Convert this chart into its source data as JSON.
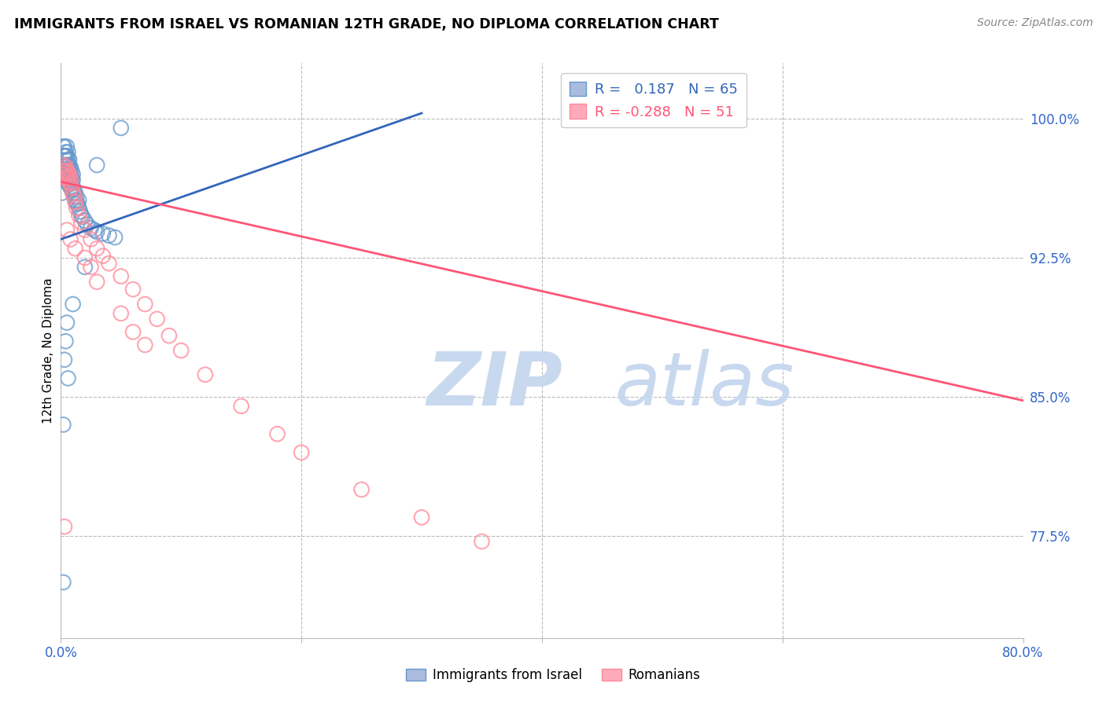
{
  "title": "IMMIGRANTS FROM ISRAEL VS ROMANIAN 12TH GRADE, NO DIPLOMA CORRELATION CHART",
  "source": "Source: ZipAtlas.com",
  "ylabel": "12th Grade, No Diploma",
  "ytick_labels": [
    "100.0%",
    "92.5%",
    "85.0%",
    "77.5%"
  ],
  "ytick_values": [
    1.0,
    0.925,
    0.85,
    0.775
  ],
  "xlim": [
    0.0,
    0.8
  ],
  "ylim": [
    0.72,
    1.03
  ],
  "blue_R": 0.187,
  "blue_N": 65,
  "pink_R": -0.288,
  "pink_N": 51,
  "blue_color": "#6699CC",
  "pink_color": "#FF8899",
  "blue_line_color": "#3366BB",
  "pink_line_color": "#FF5577",
  "grid_color": "#BBBBBB",
  "background_color": "#FFFFFF",
  "blue_scatter_x": [
    0.001,
    0.002,
    0.002,
    0.003,
    0.003,
    0.003,
    0.004,
    0.004,
    0.004,
    0.005,
    0.005,
    0.005,
    0.005,
    0.006,
    0.006,
    0.006,
    0.006,
    0.006,
    0.007,
    0.007,
    0.007,
    0.007,
    0.007,
    0.008,
    0.008,
    0.008,
    0.008,
    0.009,
    0.009,
    0.009,
    0.009,
    0.01,
    0.01,
    0.01,
    0.01,
    0.011,
    0.011,
    0.012,
    0.012,
    0.013,
    0.013,
    0.014,
    0.015,
    0.015,
    0.016,
    0.017,
    0.018,
    0.02,
    0.022,
    0.025,
    0.028,
    0.03,
    0.035,
    0.04,
    0.045,
    0.003,
    0.004,
    0.005,
    0.006,
    0.01,
    0.02,
    0.002,
    0.03,
    0.05,
    0.002
  ],
  "blue_scatter_y": [
    0.96,
    0.98,
    0.985,
    0.975,
    0.98,
    0.985,
    0.975,
    0.98,
    0.982,
    0.97,
    0.975,
    0.98,
    0.985,
    0.965,
    0.97,
    0.975,
    0.978,
    0.982,
    0.965,
    0.968,
    0.972,
    0.975,
    0.978,
    0.963,
    0.966,
    0.97,
    0.974,
    0.962,
    0.965,
    0.968,
    0.972,
    0.96,
    0.963,
    0.967,
    0.97,
    0.958,
    0.962,
    0.956,
    0.96,
    0.955,
    0.958,
    0.954,
    0.952,
    0.956,
    0.95,
    0.948,
    0.947,
    0.945,
    0.943,
    0.941,
    0.94,
    0.939,
    0.938,
    0.937,
    0.936,
    0.87,
    0.88,
    0.89,
    0.86,
    0.9,
    0.92,
    0.835,
    0.975,
    0.995,
    0.75
  ],
  "pink_scatter_x": [
    0.001,
    0.002,
    0.002,
    0.003,
    0.003,
    0.004,
    0.004,
    0.005,
    0.005,
    0.006,
    0.006,
    0.007,
    0.007,
    0.008,
    0.008,
    0.009,
    0.01,
    0.011,
    0.012,
    0.013,
    0.015,
    0.017,
    0.02,
    0.025,
    0.03,
    0.035,
    0.04,
    0.05,
    0.06,
    0.07,
    0.08,
    0.09,
    0.1,
    0.12,
    0.15,
    0.18,
    0.2,
    0.25,
    0.3,
    0.35,
    0.005,
    0.008,
    0.012,
    0.02,
    0.025,
    0.03,
    0.05,
    0.06,
    0.07,
    0.55,
    0.003
  ],
  "pink_scatter_y": [
    0.97,
    0.972,
    0.975,
    0.968,
    0.972,
    0.97,
    0.974,
    0.968,
    0.972,
    0.968,
    0.971,
    0.966,
    0.97,
    0.965,
    0.968,
    0.963,
    0.96,
    0.958,
    0.955,
    0.952,
    0.948,
    0.944,
    0.94,
    0.935,
    0.93,
    0.926,
    0.922,
    0.915,
    0.908,
    0.9,
    0.892,
    0.883,
    0.875,
    0.862,
    0.845,
    0.83,
    0.82,
    0.8,
    0.785,
    0.772,
    0.94,
    0.935,
    0.93,
    0.925,
    0.92,
    0.912,
    0.895,
    0.885,
    0.878,
    1.0,
    0.78
  ]
}
